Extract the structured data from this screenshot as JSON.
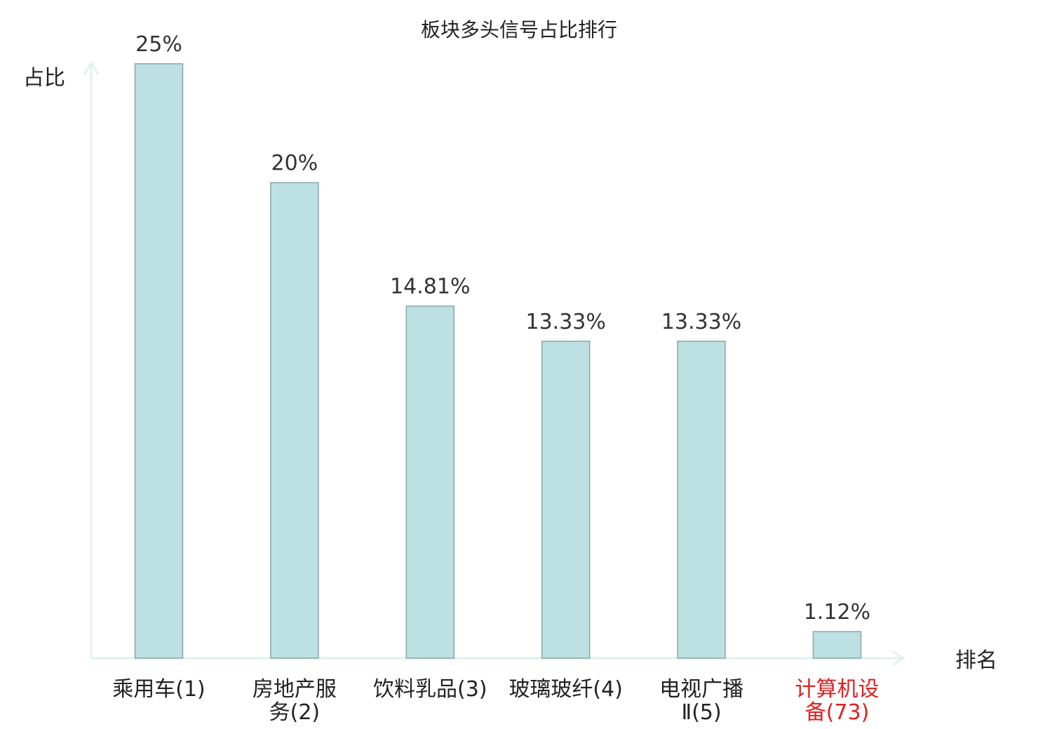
{
  "chart_data": {
    "type": "bar",
    "title": "板块多头信号占比排行",
    "ylabel": "占比",
    "xlabel": "排名",
    "categories": [
      [
        "乘用车(1)"
      ],
      [
        "房地产服",
        "务(2)"
      ],
      [
        "饮料乳品(3)"
      ],
      [
        "玻璃玻纤(4)"
      ],
      [
        "电视广播",
        "Ⅱ(5)"
      ],
      [
        "计算机设",
        "备(73)"
      ]
    ],
    "values": [
      25,
      20,
      14.81,
      13.33,
      13.33,
      1.12
    ],
    "value_labels": [
      "25%",
      "20%",
      "14.81%",
      "13.33%",
      "13.33%",
      "1.12%"
    ],
    "category_colors": [
      "#222222",
      "#222222",
      "#222222",
      "#222222",
      "#222222",
      "#e02020"
    ],
    "ylim": [
      0,
      25
    ],
    "grid": false,
    "colors": {
      "bar_fill": "#bde0e3",
      "bar_stroke": "#88a8ab",
      "axis": "#e0f2ef",
      "highlight": "#e02020"
    }
  }
}
